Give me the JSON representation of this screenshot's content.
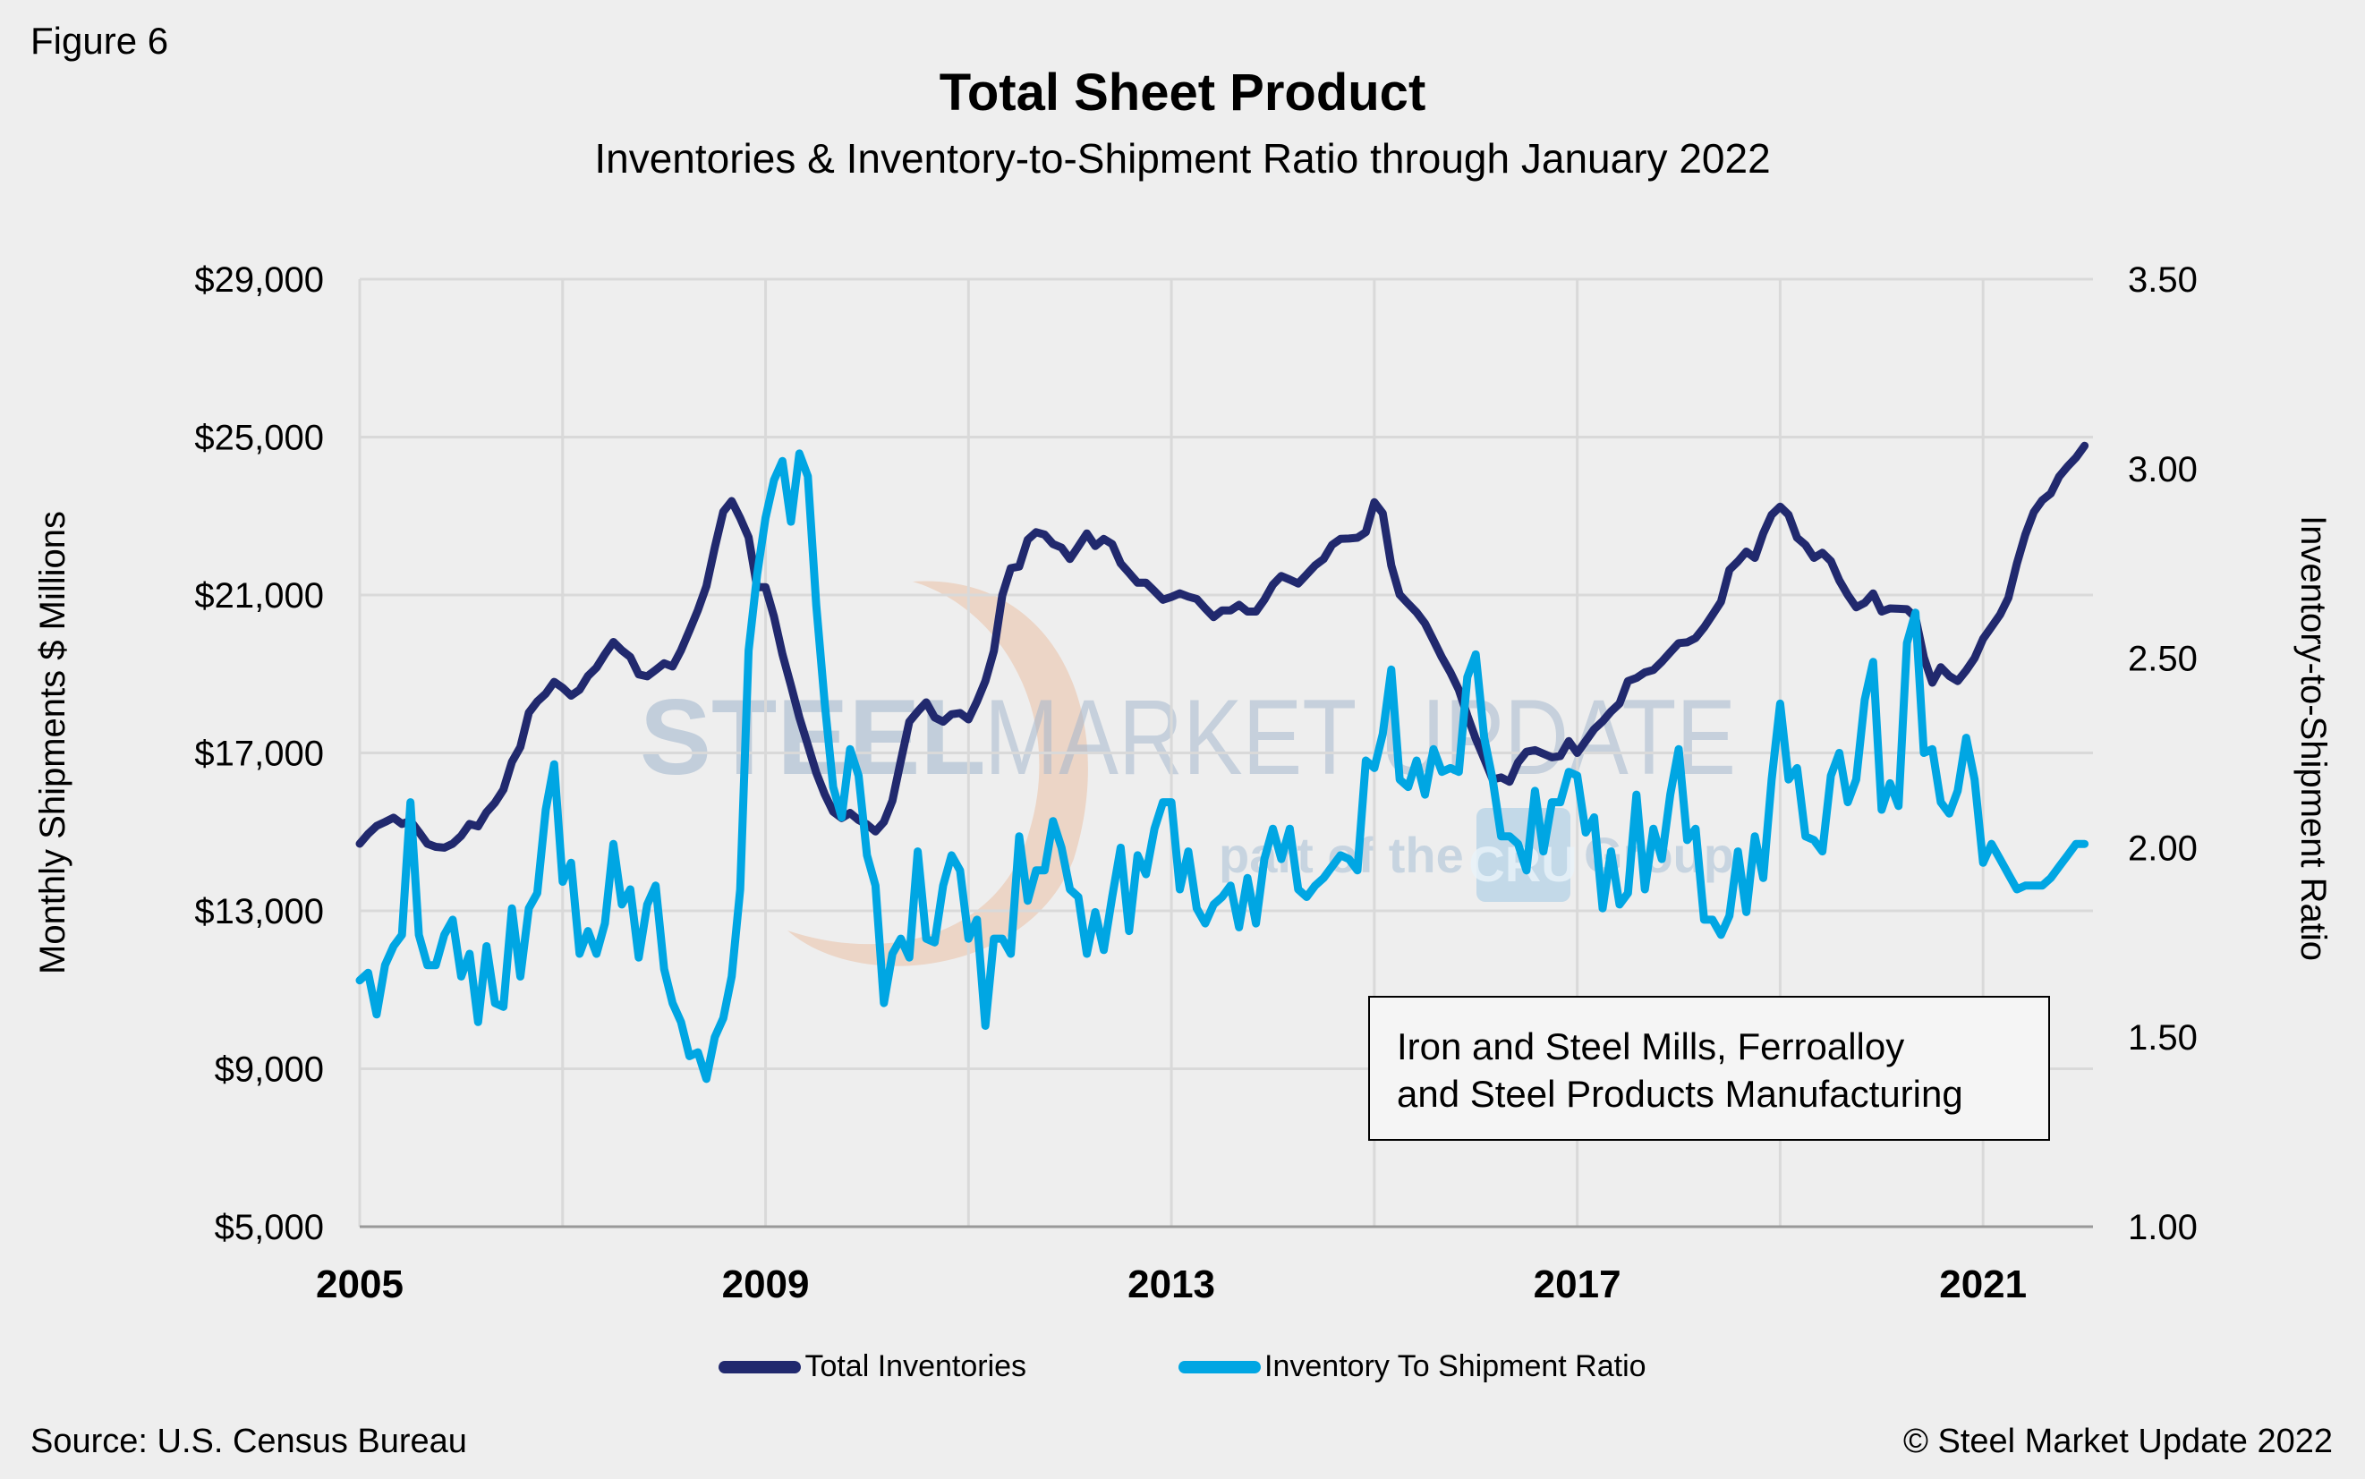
{
  "figure_label": "Figure 6",
  "source": "Source: U.S. Census Bureau",
  "copyright": "© Steel Market Update 2022",
  "annotation": "Iron and Steel Mills, Ferroalloy\nand Steel Products Manufacturing",
  "watermark": {
    "main_bold": "STEEL",
    "main_light": "MARKET UPDATE",
    "tagline_pre": "part of the",
    "logo": "CRU",
    "tagline_post": "Group"
  },
  "colors": {
    "inventories": "#21296e",
    "ratio": "#00a6e3",
    "background": "#eeeeee",
    "grid": "#d9d9d9",
    "axis": "#999999"
  },
  "chart_data": {
    "type": "line",
    "title": "Total Sheet Product",
    "subtitle": "Inventories & Inventory-to-Shipment Ratio through January 2022",
    "xlabel": "",
    "ylabel": "Monthly Shipments $ Millions",
    "y2label": "Inventory-to-Shipment Ratio",
    "x_start": "2005-01",
    "x_end": "2022-01",
    "x_frequency": "monthly",
    "xlim": [
      2005,
      2022.0833
    ],
    "x_ticks": [
      2005,
      2009,
      2013,
      2017,
      2021
    ],
    "x_tick_labels": [
      "2005",
      "2009",
      "2013",
      "2017",
      "2021"
    ],
    "x_grid_years": [
      2005,
      2007,
      2009,
      2011,
      2013,
      2015,
      2017,
      2019,
      2021
    ],
    "ylim": [
      5000,
      29000
    ],
    "y_ticks": [
      5000,
      9000,
      13000,
      17000,
      21000,
      25000,
      29000
    ],
    "y_tick_labels": [
      "$5,000",
      "$9,000",
      "$13,000",
      "$17,000",
      "$21,000",
      "$25,000",
      "$29,000"
    ],
    "y2lim": [
      1.0,
      3.5
    ],
    "y2_ticks": [
      1.0,
      1.5,
      2.0,
      2.5,
      3.0,
      3.5
    ],
    "y2_tick_labels": [
      "1.00",
      "1.50",
      "2.00",
      "2.50",
      "3.00",
      "3.50"
    ],
    "grid": true,
    "legend_position": "bottom",
    "series": [
      {
        "name": "Total Inventories",
        "axis": "left",
        "values": [
          14700,
          14950,
          15150,
          15250,
          15360,
          15200,
          15280,
          15000,
          14700,
          14620,
          14600,
          14700,
          14900,
          15200,
          15140,
          15500,
          15740,
          16070,
          16770,
          17150,
          18020,
          18300,
          18500,
          18800,
          18650,
          18450,
          18600,
          18950,
          19160,
          19500,
          19810,
          19600,
          19430,
          18990,
          18940,
          19100,
          19270,
          19190,
          19600,
          20100,
          20620,
          21220,
          22200,
          23110,
          23380,
          22950,
          22460,
          21200,
          21200,
          20450,
          19500,
          18710,
          17900,
          17200,
          16500,
          15950,
          15510,
          15350,
          15480,
          15300,
          15190,
          15010,
          15250,
          15790,
          16800,
          17790,
          18050,
          18280,
          17900,
          17790,
          17980,
          18010,
          17850,
          18300,
          18820,
          19580,
          20990,
          21680,
          21720,
          22400,
          22590,
          22530,
          22290,
          22200,
          21910,
          22230,
          22560,
          22240,
          22420,
          22290,
          21800,
          21560,
          21310,
          21310,
          21100,
          20880,
          20950,
          21040,
          20960,
          20900,
          20660,
          20440,
          20610,
          20610,
          20750,
          20580,
          20580,
          20880,
          21260,
          21480,
          21390,
          21290,
          21520,
          21750,
          21910,
          22270,
          22420,
          22430,
          22450,
          22590,
          23350,
          23070,
          21750,
          21010,
          20780,
          20560,
          20280,
          19850,
          19420,
          19040,
          18600,
          17950,
          17360,
          16850,
          16330,
          16380,
          16270,
          16760,
          17030,
          17070,
          16980,
          16890,
          16920,
          17300,
          17000,
          17300,
          17600,
          17800,
          18050,
          18250,
          18820,
          18900,
          19040,
          19100,
          19310,
          19550,
          19780,
          19800,
          19910,
          20180,
          20500,
          20830,
          21640,
          21850,
          22100,
          21940,
          22560,
          23030,
          23240,
          23030,
          22450,
          22270,
          21940,
          22070,
          21860,
          21370,
          21000,
          20690,
          20800,
          21040,
          20580,
          20660,
          20650,
          20640,
          20430,
          19420,
          18780,
          19170,
          18950,
          18820,
          19090,
          19400,
          19890,
          20190,
          20500,
          20930,
          21800,
          22530,
          23100,
          23400,
          23570,
          24000,
          24260,
          24480,
          24780
        ]
      },
      {
        "name": "Inventory To Shipment Ratio",
        "axis": "right",
        "values": [
          1.65,
          1.67,
          1.56,
          1.69,
          1.74,
          1.77,
          2.12,
          1.77,
          1.69,
          1.69,
          1.77,
          1.81,
          1.66,
          1.72,
          1.54,
          1.74,
          1.59,
          1.58,
          1.84,
          1.66,
          1.84,
          1.88,
          2.1,
          2.22,
          1.91,
          1.96,
          1.72,
          1.78,
          1.72,
          1.8,
          2.01,
          1.85,
          1.89,
          1.71,
          1.85,
          1.9,
          1.68,
          1.59,
          1.54,
          1.45,
          1.46,
          1.39,
          1.5,
          1.55,
          1.66,
          1.89,
          2.52,
          2.72,
          2.87,
          2.97,
          3.02,
          2.86,
          3.04,
          2.98,
          2.64,
          2.38,
          2.16,
          2.08,
          2.26,
          2.19,
          1.98,
          1.9,
          1.59,
          1.72,
          1.76,
          1.71,
          1.99,
          1.76,
          1.75,
          1.9,
          1.98,
          1.94,
          1.76,
          1.81,
          1.53,
          1.76,
          1.76,
          1.72,
          2.03,
          1.86,
          1.94,
          1.94,
          2.07,
          2.0,
          1.89,
          1.87,
          1.72,
          1.83,
          1.73,
          1.87,
          2.0,
          1.78,
          1.98,
          1.93,
          2.05,
          2.12,
          2.12,
          1.89,
          1.99,
          1.84,
          1.8,
          1.85,
          1.87,
          1.9,
          1.79,
          1.92,
          1.8,
          1.97,
          2.05,
          1.97,
          2.05,
          1.89,
          1.87,
          1.9,
          1.92,
          1.95,
          1.98,
          1.97,
          1.94,
          2.23,
          2.21,
          2.3,
          2.47,
          2.18,
          2.16,
          2.23,
          2.14,
          2.26,
          2.2,
          2.21,
          2.2,
          2.45,
          2.51,
          2.29,
          2.18,
          2.03,
          2.03,
          2.01,
          1.94,
          2.15,
          1.99,
          2.12,
          2.12,
          2.2,
          2.19,
          2.04,
          2.08,
          1.84,
          1.99,
          1.85,
          1.88,
          2.14,
          1.89,
          2.05,
          1.97,
          2.14,
          2.26,
          2.02,
          2.05,
          1.81,
          1.81,
          1.77,
          1.82,
          1.99,
          1.83,
          2.03,
          1.92,
          2.18,
          2.38,
          2.18,
          2.21,
          2.03,
          2.02,
          1.99,
          2.19,
          2.25,
          2.12,
          2.18,
          2.39,
          2.49,
          2.1,
          2.17,
          2.11,
          2.54,
          2.62,
          2.25,
          2.26,
          2.12,
          2.09,
          2.15,
          2.29,
          2.18,
          1.96,
          2.01,
          1.97,
          1.93,
          1.89,
          1.9,
          1.9,
          1.9,
          1.92,
          1.95,
          1.98,
          2.01,
          2.01
        ]
      }
    ]
  }
}
